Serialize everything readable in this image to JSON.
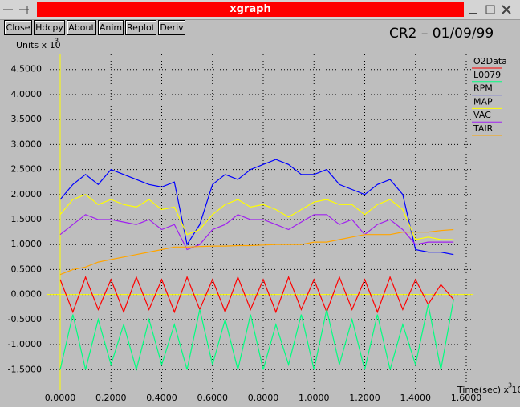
{
  "window": {
    "title": "xgraph",
    "buttons": [
      "Close",
      "Hdcpy",
      "About",
      "Anim",
      "Replot",
      "Deriv"
    ]
  },
  "chart_data": {
    "type": "line",
    "title": "CR2 – 01/09/99",
    "y_label": "Units x 10",
    "y_label_exponent": "3",
    "x_label": "Time(sec) x 10",
    "x_label_exponent": "3",
    "grid": true,
    "legend": "right",
    "xlim": [
      0,
      1.6
    ],
    "ylim": [
      -1.8,
      4.8
    ],
    "xticks": [
      {
        "value": 0,
        "label": "0.0000"
      },
      {
        "value": 0.2,
        "label": "0.2000"
      },
      {
        "value": 0.4,
        "label": "0.4000"
      },
      {
        "value": 0.6,
        "label": "0.6000"
      },
      {
        "value": 0.8,
        "label": "0.8000"
      },
      {
        "value": 1.0,
        "label": "1.0000"
      },
      {
        "value": 1.2,
        "label": "1.2000"
      },
      {
        "value": 1.4,
        "label": "1.4000"
      },
      {
        "value": 1.6,
        "label": "1.6000"
      }
    ],
    "yticks": [
      {
        "value": -1.5,
        "label": "-1.5000"
      },
      {
        "value": -1.0,
        "label": "-1.0000"
      },
      {
        "value": -0.5,
        "label": "-0.5000"
      },
      {
        "value": 0,
        "label": "0.0000"
      },
      {
        "value": 0.5,
        "label": "0.5000"
      },
      {
        "value": 1.0,
        "label": "1.0000"
      },
      {
        "value": 1.5,
        "label": "1.5000"
      },
      {
        "value": 2.0,
        "label": "2.0000"
      },
      {
        "value": 2.5,
        "label": "2.5000"
      },
      {
        "value": 3.0,
        "label": "3.0000"
      },
      {
        "value": 3.5,
        "label": "3.5000"
      },
      {
        "value": 4.0,
        "label": "4.0000"
      },
      {
        "value": 4.5,
        "label": "4.5000"
      }
    ],
    "x": [
      0,
      0.05,
      0.1,
      0.15,
      0.2,
      0.25,
      0.3,
      0.35,
      0.4,
      0.45,
      0.5,
      0.55,
      0.6,
      0.65,
      0.7,
      0.75,
      0.8,
      0.85,
      0.9,
      0.95,
      1.0,
      1.05,
      1.1,
      1.15,
      1.2,
      1.25,
      1.3,
      1.35,
      1.4,
      1.45,
      1.5,
      1.55
    ],
    "series": [
      {
        "name": "O2Data",
        "color": "#ff0000",
        "values": [
          0.3,
          -0.35,
          0.35,
          -0.3,
          0.3,
          -0.35,
          0.35,
          -0.3,
          0.3,
          -0.35,
          0.35,
          -0.3,
          0.3,
          -0.35,
          0.35,
          -0.3,
          0.3,
          -0.35,
          0.35,
          -0.3,
          0.3,
          -0.35,
          0.35,
          -0.3,
          0.3,
          -0.35,
          0.35,
          -0.3,
          0.3,
          -0.2,
          0.2,
          -0.1
        ]
      },
      {
        "name": "L0079",
        "color": "#00ff80",
        "values": [
          -1.5,
          -0.4,
          -1.5,
          -0.5,
          -1.4,
          -0.6,
          -1.5,
          -0.5,
          -1.4,
          -0.6,
          -1.5,
          -0.3,
          -1.4,
          -0.5,
          -1.5,
          -0.4,
          -1.5,
          -0.6,
          -1.4,
          -0.4,
          -1.5,
          -0.3,
          -1.4,
          -0.5,
          -1.5,
          -0.4,
          -1.5,
          -0.6,
          -1.4,
          -0.2,
          -1.5,
          -0.1
        ]
      },
      {
        "name": "RPM",
        "color": "#0000ff",
        "values": [
          1.9,
          2.2,
          2.4,
          2.2,
          2.5,
          2.4,
          2.3,
          2.2,
          2.15,
          2.25,
          1.0,
          1.4,
          2.2,
          2.4,
          2.3,
          2.5,
          2.6,
          2.7,
          2.6,
          2.4,
          2.4,
          2.5,
          2.2,
          2.1,
          2.0,
          2.2,
          2.3,
          2.0,
          0.9,
          0.85,
          0.85,
          0.8
        ]
      },
      {
        "name": "MAP",
        "color": "#ffff00",
        "values": [
          1.6,
          1.9,
          2.0,
          1.8,
          1.9,
          1.8,
          1.75,
          1.9,
          1.7,
          1.75,
          1.2,
          1.3,
          1.6,
          1.8,
          1.9,
          1.75,
          1.8,
          1.7,
          1.55,
          1.7,
          1.85,
          1.9,
          1.8,
          1.8,
          1.6,
          1.8,
          1.9,
          1.7,
          1.1,
          1.15,
          1.1,
          1.1
        ]
      },
      {
        "name": "VAC",
        "color": "#a020f0",
        "values": [
          1.2,
          1.4,
          1.6,
          1.5,
          1.5,
          1.45,
          1.4,
          1.5,
          1.3,
          1.4,
          0.9,
          1.0,
          1.3,
          1.4,
          1.6,
          1.5,
          1.5,
          1.4,
          1.3,
          1.45,
          1.6,
          1.6,
          1.4,
          1.5,
          1.2,
          1.4,
          1.5,
          1.3,
          1.0,
          1.05,
          1.05,
          1.05
        ]
      },
      {
        "name": "TAIR",
        "color": "#ffa500",
        "values": [
          0.4,
          0.5,
          0.55,
          0.65,
          0.7,
          0.75,
          0.8,
          0.85,
          0.9,
          0.95,
          0.95,
          0.96,
          0.97,
          0.97,
          0.98,
          0.98,
          0.99,
          1.0,
          1.0,
          1.0,
          1.05,
          1.05,
          1.1,
          1.15,
          1.2,
          1.2,
          1.2,
          1.25,
          1.25,
          1.25,
          1.28,
          1.3
        ]
      }
    ]
  }
}
